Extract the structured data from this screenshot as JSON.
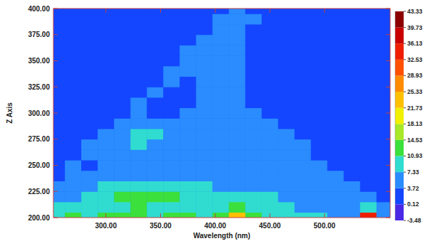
{
  "chart_data": {
    "type": "contour",
    "x_label": "Wavelength (nm)",
    "y_label": "Z Axis",
    "x": [
      255,
      270,
      285,
      300,
      315,
      330,
      345,
      360,
      375,
      390,
      405,
      420,
      435,
      450,
      465,
      480,
      495,
      510,
      525,
      540,
      555
    ],
    "y": [
      200,
      210,
      220,
      230,
      240,
      250,
      260,
      270,
      280,
      290,
      300,
      310,
      320,
      330,
      340,
      350,
      360,
      370,
      380,
      390,
      400
    ],
    "cells": [
      [
        10,
        12,
        9,
        11,
        12,
        11,
        10,
        12,
        11,
        10,
        13,
        24,
        14,
        10,
        9,
        8,
        8,
        6,
        7,
        35,
        5
      ],
      [
        8,
        9,
        9,
        10,
        10,
        11,
        10,
        9,
        9,
        10,
        10,
        12,
        10,
        9,
        8,
        7,
        7,
        6,
        6,
        9,
        4
      ],
      [
        6,
        6,
        9,
        10,
        11,
        11,
        11,
        11,
        10,
        10,
        8,
        9,
        8,
        8,
        7,
        6,
        6,
        5,
        5,
        4,
        3
      ],
      [
        4,
        5,
        6,
        9,
        10,
        10,
        10,
        10,
        9,
        8,
        6,
        6,
        6,
        6,
        5,
        5,
        5,
        4,
        4,
        3,
        2
      ],
      [
        3,
        6,
        4,
        4,
        4,
        5,
        5,
        4,
        4,
        4,
        4,
        5,
        5,
        5,
        4,
        4,
        4,
        4,
        3,
        2,
        2
      ],
      [
        2,
        6,
        3,
        4,
        4,
        4,
        4,
        4,
        4,
        4,
        4,
        4,
        4,
        4,
        4,
        4,
        4,
        3,
        2,
        2,
        2
      ],
      [
        2,
        2,
        6,
        4,
        4,
        5,
        5,
        4,
        4,
        4,
        4,
        4,
        4,
        4,
        4,
        4,
        3,
        2,
        2,
        2,
        2
      ],
      [
        2,
        2,
        5,
        6,
        6,
        8,
        7,
        6,
        4,
        4,
        4,
        4,
        4,
        4,
        4,
        4,
        3,
        2,
        2,
        2,
        2
      ],
      [
        2,
        2,
        2,
        6,
        6,
        8,
        8,
        6,
        4,
        4,
        4,
        4,
        4,
        4,
        4,
        3,
        2,
        2,
        2,
        2,
        2
      ],
      [
        2,
        2,
        2,
        2,
        6,
        4,
        4,
        4,
        4,
        4,
        4,
        4,
        4,
        4,
        3,
        2,
        2,
        2,
        2,
        2,
        2
      ],
      [
        2,
        2,
        2,
        2,
        3,
        6,
        3,
        3,
        4,
        4,
        4,
        4,
        4,
        3,
        2,
        2,
        2,
        2,
        2,
        2,
        2
      ],
      [
        2,
        2,
        2,
        2,
        2,
        6,
        3,
        3,
        3,
        4,
        4,
        4,
        3,
        2,
        2,
        2,
        2,
        2,
        2,
        2,
        2
      ],
      [
        2,
        2,
        2,
        2,
        2,
        2,
        6,
        3,
        3,
        4,
        4,
        4,
        3,
        2,
        2,
        2,
        2,
        2,
        2,
        2,
        2
      ],
      [
        2,
        2,
        2,
        2,
        2,
        2,
        3,
        6,
        3,
        4,
        4,
        4,
        3,
        2,
        2,
        2,
        2,
        2,
        2,
        2,
        2
      ],
      [
        2,
        2,
        2,
        2,
        2,
        2,
        2,
        6,
        4,
        4,
        4,
        4,
        2,
        2,
        2,
        2,
        2,
        2,
        2,
        2,
        2
      ],
      [
        2,
        2,
        2,
        2,
        2,
        2,
        2,
        3,
        6,
        4,
        4,
        4,
        2,
        2,
        2,
        2,
        2,
        2,
        2,
        2,
        2
      ],
      [
        2,
        2,
        2,
        2,
        2,
        2,
        2,
        2,
        6,
        4,
        4,
        4,
        2,
        2,
        2,
        2,
        2,
        2,
        2,
        2,
        2
      ],
      [
        2,
        2,
        2,
        2,
        2,
        2,
        2,
        2,
        3,
        6,
        4,
        4,
        3,
        2,
        2,
        2,
        2,
        2,
        2,
        2,
        2
      ],
      [
        2,
        2,
        2,
        2,
        2,
        2,
        2,
        2,
        2,
        3,
        6,
        4,
        3,
        2,
        2,
        2,
        2,
        2,
        2,
        2,
        2
      ],
      [
        2,
        2,
        2,
        2,
        2,
        2,
        2,
        2,
        2,
        2,
        6,
        4,
        4,
        2,
        2,
        2,
        2,
        2,
        2,
        2,
        2
      ],
      [
        2,
        2,
        2,
        2,
        2,
        2,
        2,
        2,
        2,
        2,
        2,
        6,
        3,
        2,
        2,
        2,
        2,
        2,
        2,
        2,
        2
      ]
    ],
    "xlim": [
      252,
      560
    ],
    "xticks": [
      {
        "value": 300,
        "label": "300.00"
      },
      {
        "value": 350,
        "label": "350.00"
      },
      {
        "value": 400,
        "label": "400.00"
      },
      {
        "value": 450,
        "label": "450.00"
      },
      {
        "value": 500,
        "label": "500.00"
      }
    ],
    "ylim": [
      200,
      400
    ],
    "yticks": [
      {
        "value": 200,
        "label": "200.00"
      },
      {
        "value": 225,
        "label": "225.00"
      },
      {
        "value": 250,
        "label": "250.00"
      },
      {
        "value": 275,
        "label": "275.00"
      },
      {
        "value": 300,
        "label": "300.00"
      },
      {
        "value": 325,
        "label": "325.00"
      },
      {
        "value": 350,
        "label": "350.00"
      },
      {
        "value": 375,
        "label": "375.00"
      },
      {
        "value": 400,
        "label": "400.00"
      }
    ],
    "color_range": [
      -3.48,
      43.33
    ],
    "color_ticks": [
      -3.48,
      0.12,
      3.72,
      7.33,
      10.93,
      14.53,
      18.13,
      21.73,
      25.33,
      28.93,
      32.53,
      36.13,
      39.73,
      43.33
    ],
    "colors": [
      "#4b28e6",
      "#1446ff",
      "#2a8cff",
      "#30dcd0",
      "#3ce03c",
      "#a8e828",
      "#f0f000",
      "#ffc000",
      "#ff8c00",
      "#ff5000",
      "#f01e00",
      "#c80000",
      "#8c0000"
    ]
  }
}
